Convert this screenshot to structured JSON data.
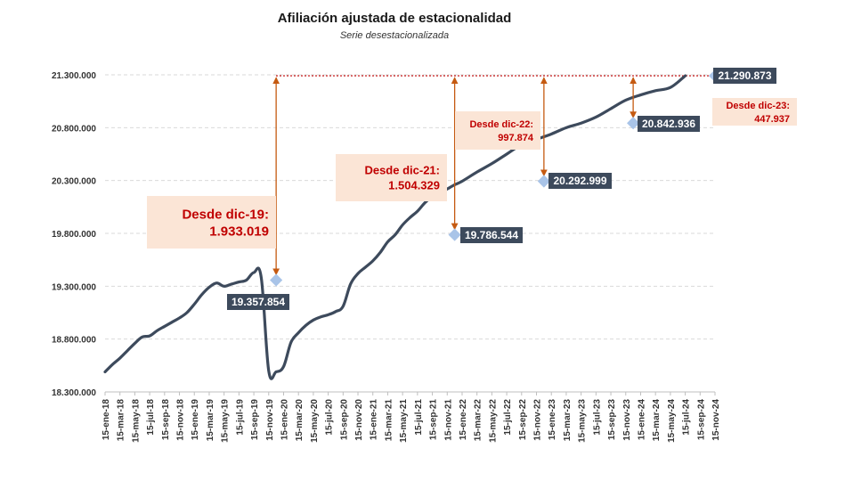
{
  "chart_data": {
    "type": "line",
    "title": "Afiliación ajustada de estacionalidad",
    "subtitle": "Serie desestacionalizada",
    "ylim": [
      18300000,
      21300000
    ],
    "yticks": [
      18300000,
      18800000,
      19300000,
      19800000,
      20300000,
      20800000,
      21300000
    ],
    "ytick_labels": [
      "18.300.000",
      "18.800.000",
      "19.300.000",
      "19.800.000",
      "20.300.000",
      "20.800.000",
      "21.300.000"
    ],
    "grid": true,
    "xtick_labels": [
      "15-ene-18",
      "15-mar-18",
      "15-may-18",
      "15-jul-18",
      "15-sep-18",
      "15-nov-18",
      "15-ene-19",
      "15-mar-19",
      "15-may-19",
      "15-jul-19",
      "15-sep-19",
      "15-nov-19",
      "15-ene-20",
      "15-mar-20",
      "15-may-20",
      "15-jul-20",
      "15-sep-20",
      "15-nov-20",
      "15-ene-21",
      "15-mar-21",
      "15-may-21",
      "15-jul-21",
      "15-sep-21",
      "15-nov-21",
      "15-ene-22",
      "15-mar-22",
      "15-may-22",
      "15-jul-22",
      "15-sep-22",
      "15-nov-22",
      "15-ene-23",
      "15-mar-23",
      "15-may-23",
      "15-jul-23",
      "15-sep-23",
      "15-nov-23",
      "15-ene-24",
      "15-mar-24",
      "15-may-24",
      "15-jul-24",
      "15-sep-24",
      "15-nov-24"
    ],
    "line_color": "#3d4a5c",
    "series": [
      {
        "values": [
          18490000,
          18560000,
          18620000,
          18690000,
          18760000,
          18820000,
          18830000,
          18880000,
          18920000,
          18960000,
          19000000,
          19050000,
          19130000,
          19220000,
          19290000,
          19330000,
          19300000,
          19320000,
          19340000,
          19357854,
          19430000,
          19380000,
          18500000,
          18490000,
          18540000,
          18770000,
          18860000,
          18930000,
          18980000,
          19010000,
          19030000,
          19060000,
          19110000,
          19320000,
          19420000,
          19480000,
          19540000,
          19620000,
          19720000,
          19786544,
          19880000,
          19950000,
          20010000,
          20090000,
          20150000,
          20180000,
          20220000,
          20260000,
          20292999,
          20380000,
          20460000,
          20550000,
          20640000,
          20690000,
          20740000,
          20800000,
          20842936,
          20900000,
          20980000,
          21060000,
          21110000,
          21150000,
          21180000,
          21290873
        ],
        "point_month_index": [
          0,
          1,
          2,
          3,
          4,
          5,
          6,
          7,
          8,
          9,
          10,
          11,
          12,
          13,
          14,
          15,
          16,
          17,
          18,
          19,
          20,
          21,
          22,
          23,
          24,
          25,
          26,
          27,
          28,
          29,
          30,
          31,
          32,
          33,
          34,
          35,
          36,
          37,
          38,
          39,
          40,
          41,
          42,
          43,
          44,
          45,
          46,
          47,
          48,
          50,
          52,
          54,
          56,
          58,
          60,
          62,
          64,
          66,
          68,
          70,
          72,
          74,
          76,
          78
        ]
      }
    ],
    "highlights": [
      {
        "date": "dic-19",
        "value": 19357854,
        "label": "19.357.854"
      },
      {
        "date": "dic-21",
        "value": 19786544,
        "label": "19.786.544"
      },
      {
        "date": "dic-22",
        "value": 20292999,
        "label": "20.292.999"
      },
      {
        "date": "dic-23",
        "value": 20842936,
        "label": "20.842.936"
      },
      {
        "date": "nov-24",
        "value": 21290873,
        "label": "21.290.873"
      }
    ],
    "annotations": [
      {
        "line1": "Desde dic-19:",
        "line2": "1.933.019"
      },
      {
        "line1": "Desde dic-21:",
        "line2": "1.504.329"
      },
      {
        "line1": "Desde dic-22:",
        "line2": "997.874"
      },
      {
        "line1": "Desde dic-23:",
        "line2": "447.937"
      }
    ],
    "colors": {
      "line": "#3d4a5c",
      "marker": "#a9c4e8",
      "label_box": "#3d4a5c",
      "arrow": "#c55a11",
      "annotation_bg": "#fbe5d6",
      "annotation_text": "#c00000",
      "ref_line": "#c00000",
      "grid": "#d9d9d9"
    }
  }
}
